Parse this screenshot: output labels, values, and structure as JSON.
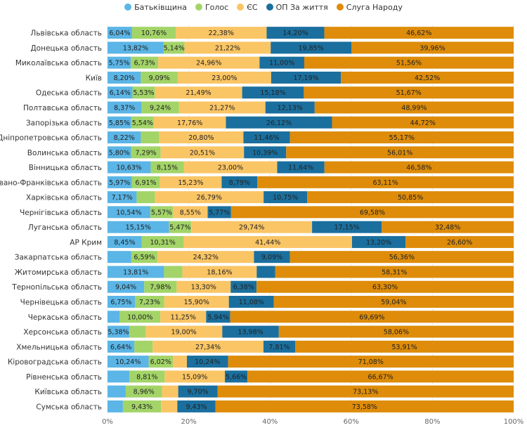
{
  "chart_data": {
    "type": "bar",
    "orientation": "horizontal",
    "stacked": true,
    "normalized_percent": true,
    "legend_position": "top-center",
    "xlim": [
      0,
      100
    ],
    "xticks": [
      0,
      20,
      40,
      60,
      80,
      100
    ],
    "xtick_labels": [
      "0%",
      "20%",
      "40%",
      "60%",
      "80%",
      "100%"
    ],
    "grid": true,
    "categories": [
      "Львівська область",
      "Донецька область",
      "Миколаївська область",
      "Київ",
      "Одеська область",
      "Полтавська область",
      "Запорізька область",
      "Дніпропетровська область",
      "Волинська область",
      "Вінницька область",
      "Івано-Франківська область",
      "Харківська область",
      "Чернігівська область",
      "Луганська область",
      "АР Крим",
      "Закарпатська область",
      "Житомирська область",
      "Тернопільська область",
      "Чернівецька область",
      "Черкаська область",
      "Херсонська область",
      "Хмельницька область",
      "Кіровоградська область",
      "Рівненська область",
      "Київська область",
      "Сумська область"
    ],
    "series": [
      {
        "name": "Батьківщина",
        "color": "#5bb5e6",
        "values": [
          6.04,
          13.82,
          5.75,
          8.2,
          6.14,
          8.37,
          5.85,
          8.22,
          5.8,
          10.63,
          5.97,
          7.17,
          10.54,
          15.15,
          8.45,
          6.0,
          13.81,
          9.04,
          6.75,
          3.0,
          5.38,
          6.64,
          10.24,
          5.5,
          4.5,
          3.8
        ],
        "labels": [
          "6,04%",
          "13,82%",
          "5,75%",
          "8,20%",
          "6,14%",
          "8,37%",
          "5,85%",
          "8,22%",
          "5,80%",
          "10,63%",
          "5,97%",
          "7,17%",
          "10,54%",
          "15,15%",
          "8,45%",
          "",
          "13,81%",
          "9,04%",
          "6,75%",
          "",
          "5,38%",
          "6,64%",
          "10,24%",
          "",
          "",
          ""
        ]
      },
      {
        "name": "Голос",
        "color": "#a3d468",
        "values": [
          10.76,
          5.14,
          6.73,
          9.09,
          5.53,
          9.24,
          5.54,
          4.5,
          7.29,
          8.15,
          6.91,
          4.5,
          5.57,
          5.47,
          10.31,
          6.59,
          4.5,
          7.98,
          7.23,
          10.0,
          4.0,
          4.5,
          6.02,
          8.81,
          8.96,
          9.43
        ],
        "labels": [
          "10,76%",
          "5,14%",
          "6,73%",
          "9,09%",
          "5,53%",
          "9,24%",
          "5,54%",
          "",
          "7,29%",
          "8,15%",
          "6,91%",
          "",
          "5,57%",
          "5,47%",
          "10,31%",
          "6,59%",
          "",
          "7,98%",
          "7,23%",
          "10,00%",
          "",
          "",
          "6,02%",
          "8,81%",
          "8,96%",
          "9,43%"
        ]
      },
      {
        "name": "ЄС",
        "color": "#fac565",
        "values": [
          22.38,
          21.22,
          24.96,
          23.0,
          21.49,
          21.27,
          17.76,
          20.8,
          20.51,
          23.0,
          15.23,
          26.79,
          8.55,
          29.74,
          41.44,
          24.32,
          18.16,
          13.3,
          15.9,
          11.25,
          19.0,
          27.34,
          3.5,
          15.09,
          4.0,
          4.0
        ],
        "labels": [
          "22,38%",
          "21,22%",
          "24,96%",
          "23,00%",
          "21,49%",
          "21,27%",
          "17,76%",
          "20,80%",
          "20,51%",
          "23,00%",
          "15,23%",
          "26,79%",
          "8,55%",
          "29,74%",
          "41,44%",
          "24,32%",
          "18,16%",
          "13,30%",
          "15,90%",
          "11,25%",
          "19,00%",
          "27,34%",
          "",
          "15,09%",
          "",
          ""
        ]
      },
      {
        "name": "ОП За життя",
        "color": "#1a6f9e",
        "values": [
          14.2,
          19.85,
          11.0,
          17.19,
          15.18,
          12.13,
          26.12,
          11.46,
          10.39,
          11.64,
          8.79,
          10.75,
          5.77,
          17.15,
          13.2,
          9.09,
          4.5,
          6.38,
          11.08,
          5.94,
          13.98,
          7.81,
          10.24,
          5.66,
          9.7,
          9.43
        ],
        "labels": [
          "14,20%",
          "19,85%",
          "11,00%",
          "17,19%",
          "15,18%",
          "12,13%",
          "26,12%",
          "11,46%",
          "10,39%",
          "11,64%",
          "8,79%",
          "10,75%",
          "5,77%",
          "17,15%",
          "13,20%",
          "9,09%",
          "",
          "6,38%",
          "11,08%",
          "5,94%",
          "13,98%",
          "7,81%",
          "10,24%",
          "5,66%",
          "9,70%",
          "9,43%"
        ]
      },
      {
        "name": "Слуга Народу",
        "color": "#de8c0a",
        "values": [
          46.62,
          39.96,
          51.56,
          42.52,
          51.67,
          48.99,
          44.72,
          55.17,
          56.01,
          46.58,
          63.11,
          50.85,
          69.58,
          32.48,
          26.6,
          56.36,
          58.31,
          63.3,
          59.04,
          69.69,
          58.06,
          53.91,
          71.08,
          66.67,
          73.13,
          73.58
        ],
        "labels": [
          "46,62%",
          "39,96%",
          "51,56%",
          "42,52%",
          "51,67%",
          "48,99%",
          "44,72%",
          "55,17%",
          "56,01%",
          "46,58%",
          "63,11%",
          "50,85%",
          "69,58%",
          "32,48%",
          "26,60%",
          "56,36%",
          "58,31%",
          "63,30%",
          "59,04%",
          "69,69%",
          "58,06%",
          "53,91%",
          "71,08%",
          "66,67%",
          "73,13%",
          "73,58%"
        ]
      }
    ]
  }
}
